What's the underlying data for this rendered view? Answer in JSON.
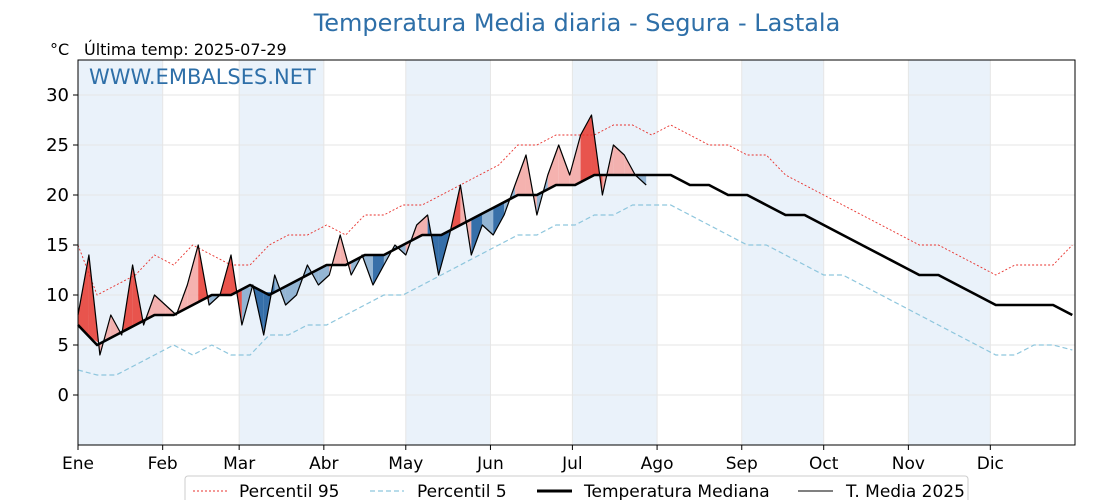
{
  "chart_data": {
    "type": "line",
    "title": "Temperatura Media diaria - Segura - Lastala",
    "unit_label": "°C",
    "last_temp": "Última temp: 2025-07-29",
    "watermark": "WWW.EMBALSES.NET",
    "months": [
      "Ene",
      "Feb",
      "Mar",
      "Abr",
      "May",
      "Jun",
      "Jul",
      "Ago",
      "Sep",
      "Oct",
      "Nov",
      "Dic"
    ],
    "ylim": [
      -5,
      33.5
    ],
    "yticks": [
      0,
      5,
      10,
      15,
      20,
      25,
      30
    ],
    "grid": true,
    "legend_position": "bottom",
    "colors": {
      "p95": "#e8322d",
      "p5": "#8ec6dd",
      "median": "#000000",
      "current": "#000000",
      "above_fill": "#f4aaa6",
      "above_fill_strong": "#e8423a",
      "below_fill": "#8aaecf",
      "below_fill_strong": "#2260a0",
      "band": "#eaf2fa",
      "title": "#2e6fa8"
    },
    "series": [
      {
        "name": "Percentil 95",
        "style": "dotted-red",
        "x": [
          1,
          8,
          15,
          22,
          29,
          36,
          43,
          50,
          57,
          64,
          71,
          78,
          85,
          92,
          99,
          106,
          113,
          120,
          127,
          134,
          141,
          148,
          155,
          162,
          169,
          176,
          183,
          190,
          197,
          204,
          211,
          218,
          225,
          232,
          239,
          246,
          253,
          260,
          267,
          274,
          281,
          288,
          295,
          302,
          309,
          316,
          323,
          330,
          337,
          344,
          351,
          358,
          365
        ],
        "values": [
          15,
          10,
          11,
          12,
          14,
          13,
          15,
          14,
          13,
          13,
          15,
          16,
          16,
          17,
          16,
          18,
          18,
          19,
          19,
          20,
          21,
          22,
          23,
          25,
          25,
          26,
          26,
          26,
          27,
          27,
          26,
          27,
          26,
          25,
          25,
          24,
          24,
          22,
          21,
          20,
          19,
          18,
          17,
          16,
          15,
          15,
          14,
          13,
          12,
          13,
          13,
          13,
          15
        ]
      },
      {
        "name": "Percentil 5",
        "style": "dashed-lightblue",
        "x": [
          1,
          8,
          15,
          22,
          29,
          36,
          43,
          50,
          57,
          64,
          71,
          78,
          85,
          92,
          99,
          106,
          113,
          120,
          127,
          134,
          141,
          148,
          155,
          162,
          169,
          176,
          183,
          190,
          197,
          204,
          211,
          218,
          225,
          232,
          239,
          246,
          253,
          260,
          267,
          274,
          281,
          288,
          295,
          302,
          309,
          316,
          323,
          330,
          337,
          344,
          351,
          358,
          365
        ],
        "values": [
          2.5,
          2,
          2,
          3,
          4,
          5,
          4,
          5,
          4,
          4,
          6,
          6,
          7,
          7,
          8,
          9,
          10,
          10,
          11,
          12,
          13,
          14,
          15,
          16,
          16,
          17,
          17,
          18,
          18,
          19,
          19,
          19,
          18,
          17,
          16,
          15,
          15,
          14,
          13,
          12,
          12,
          11,
          10,
          9,
          8,
          7,
          6,
          5,
          4,
          4,
          5,
          5,
          4.5
        ]
      },
      {
        "name": "Temperatura Mediana",
        "style": "thick-black",
        "x": [
          1,
          8,
          15,
          22,
          29,
          36,
          43,
          50,
          57,
          64,
          71,
          78,
          85,
          92,
          99,
          106,
          113,
          120,
          127,
          134,
          141,
          148,
          155,
          162,
          169,
          176,
          183,
          190,
          197,
          204,
          211,
          218,
          225,
          232,
          239,
          246,
          253,
          260,
          267,
          274,
          281,
          288,
          295,
          302,
          309,
          316,
          323,
          330,
          337,
          344,
          351,
          358,
          365
        ],
        "values": [
          7,
          5,
          6,
          7,
          8,
          8,
          9,
          10,
          10,
          11,
          10,
          11,
          12,
          13,
          13,
          14,
          14,
          15,
          16,
          16,
          17,
          18,
          19,
          20,
          20,
          21,
          21,
          22,
          22,
          22,
          22,
          22,
          21,
          21,
          20,
          20,
          19,
          18,
          18,
          17,
          16,
          15,
          14,
          13,
          12,
          12,
          11,
          10,
          9,
          9,
          9,
          9,
          8
        ]
      },
      {
        "name": "T. Media 2025",
        "style": "thin-black",
        "x": [
          1,
          5,
          9,
          13,
          17,
          21,
          25,
          29,
          33,
          37,
          41,
          45,
          49,
          53,
          57,
          61,
          65,
          69,
          73,
          77,
          81,
          85,
          89,
          93,
          97,
          101,
          105,
          109,
          113,
          117,
          121,
          125,
          129,
          133,
          137,
          141,
          145,
          149,
          153,
          157,
          161,
          165,
          169,
          173,
          177,
          181,
          185,
          189,
          193,
          197,
          201,
          205,
          209
        ],
        "values": [
          8,
          14,
          4,
          8,
          6,
          13,
          7,
          10,
          9,
          8,
          11,
          15,
          9,
          10,
          14,
          7,
          11,
          6,
          12,
          9,
          10,
          13,
          11,
          12,
          16,
          12,
          14,
          11,
          13,
          15,
          14,
          17,
          18,
          12,
          16,
          21,
          14,
          17,
          16,
          18,
          21,
          24,
          18,
          22,
          25,
          22,
          26,
          28,
          20,
          25,
          24,
          22,
          21
        ]
      }
    ]
  }
}
